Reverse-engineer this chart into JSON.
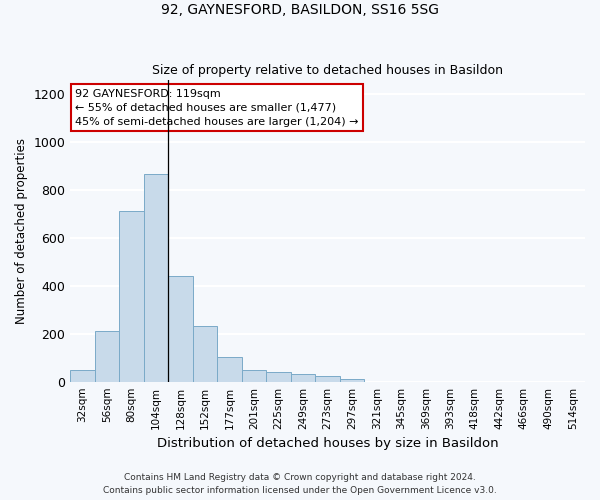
{
  "title_line1": "92, GAYNESFORD, BASILDON, SS16 5SG",
  "title_line2": "Size of property relative to detached houses in Basildon",
  "xlabel": "Distribution of detached houses by size in Basildon",
  "ylabel": "Number of detached properties",
  "bar_color": "#c8daea",
  "bar_edge_color": "#7aaac8",
  "categories": [
    "32sqm",
    "56sqm",
    "80sqm",
    "104sqm",
    "128sqm",
    "152sqm",
    "177sqm",
    "201sqm",
    "225sqm",
    "249sqm",
    "273sqm",
    "297sqm",
    "321sqm",
    "345sqm",
    "369sqm",
    "393sqm",
    "418sqm",
    "442sqm",
    "466sqm",
    "490sqm",
    "514sqm"
  ],
  "values": [
    50,
    210,
    710,
    865,
    440,
    233,
    105,
    48,
    40,
    30,
    22,
    10,
    0,
    0,
    0,
    0,
    0,
    0,
    0,
    0,
    0
  ],
  "ylim": [
    0,
    1260
  ],
  "yticks": [
    0,
    200,
    400,
    600,
    800,
    1000,
    1200
  ],
  "vline_x": 3.5,
  "annotation_text_line1": "92 GAYNESFORD: 119sqm",
  "annotation_text_line2": "← 55% of detached houses are smaller (1,477)",
  "annotation_text_line3": "45% of semi-detached houses are larger (1,204) →",
  "annotation_box_color": "#ffffff",
  "annotation_box_edge": "#cc0000",
  "footer_line1": "Contains HM Land Registry data © Crown copyright and database right 2024.",
  "footer_line2": "Contains public sector information licensed under the Open Government Licence v3.0.",
  "background_color": "#f5f8fc",
  "grid_color": "#ffffff"
}
